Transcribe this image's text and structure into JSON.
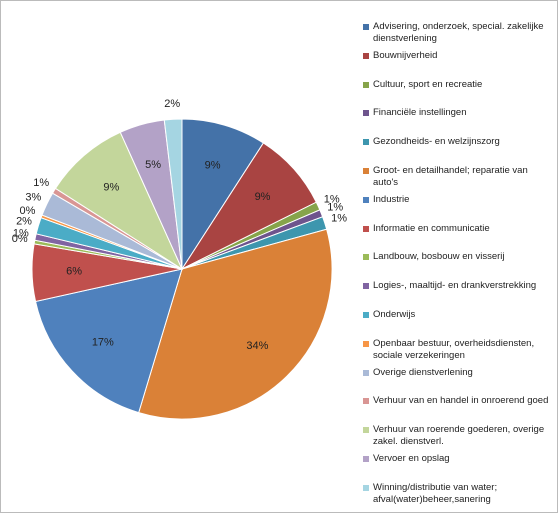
{
  "chart_data": {
    "type": "pie",
    "categories": [
      "Advisering, onderzoek, special. zakelijke dienstverlening",
      "Bouwnijverheid",
      "Cultuur, sport en recreatie",
      "Financiële instellingen",
      "Gezondheids- en welzijnszorg",
      "Groot- en detailhandel; reparatie van auto's",
      "Industrie",
      "Informatie en communicatie",
      "Landbouw, bosbouw en visserij",
      "Logies-, maaltijd- en drankverstrekking",
      "Onderwijs",
      "Openbaar bestuur, overheidsdiensten, sociale verzekeringen",
      "Overige dienstverlening",
      "Verhuur van en handel in onroerend goed",
      "Verhuur van roerende goederen, overige zakel. dienstverl.",
      "Vervoer en opslag",
      "Winning/distributie van water; afval(water)beheer,sanering"
    ],
    "values": [
      9.2,
      8.6,
      0.9,
      0.8,
      1.4,
      34.2,
      17.0,
      6.2,
      0.4,
      0.7,
      1.8,
      0.3,
      2.6,
      0.6,
      9.3,
      4.9,
      1.9
    ],
    "value_labels": [
      "9%",
      "9%",
      "1%",
      "1%",
      "1%",
      "34%",
      "17%",
      "6%",
      "0%",
      "1%",
      "2%",
      "0%",
      "3%",
      "1%",
      "9%",
      "5%",
      "2%"
    ],
    "colors": [
      "#4472A8",
      "#A94442",
      "#86A44A",
      "#6E548D",
      "#3D96AE",
      "#DA8137",
      "#4F81BD",
      "#C0504D",
      "#9BBB59",
      "#8064A2",
      "#4BACC6",
      "#F79646",
      "#AABAD7",
      "#D99694",
      "#C3D69B",
      "#B3A2C7",
      "#A5D5E2"
    ],
    "legend": "right"
  }
}
